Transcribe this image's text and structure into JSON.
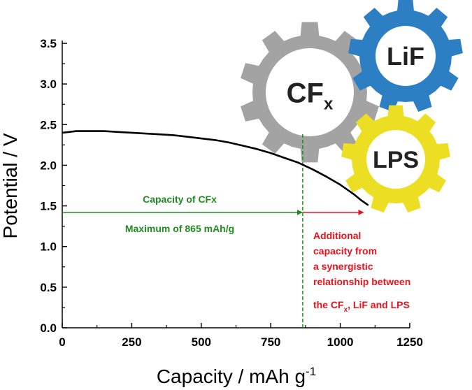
{
  "chart_data": {
    "type": "line",
    "xlabel": "Capacity / mAh g",
    "xlabel_sup": "-1",
    "ylabel": "Potential / V",
    "xlim": [
      0,
      1250
    ],
    "ylim": [
      0,
      3.5
    ],
    "xticks": [
      "0",
      "250",
      "500",
      "750",
      "1000",
      "1250"
    ],
    "yticks": [
      "0.0",
      "0.5",
      "1.0",
      "1.5",
      "2.0",
      "2.5",
      "3.0",
      "3.5"
    ],
    "series": [
      {
        "color": "#000000",
        "x": [
          0,
          25,
          50,
          100,
          150,
          200,
          250,
          300,
          350,
          400,
          450,
          500,
          550,
          600,
          650,
          700,
          750,
          800,
          850,
          875,
          900,
          950,
          1000,
          1050,
          1075,
          1100
        ],
        "y": [
          2.4,
          2.41,
          2.42,
          2.42,
          2.42,
          2.41,
          2.4,
          2.39,
          2.38,
          2.37,
          2.35,
          2.33,
          2.31,
          2.28,
          2.24,
          2.2,
          2.15,
          2.09,
          2.03,
          1.99,
          1.95,
          1.86,
          1.76,
          1.64,
          1.57,
          1.51
        ]
      }
    ],
    "marker_line": {
      "x": 865,
      "color": "#1e8c1e",
      "style": "dashed"
    },
    "arrows": [
      {
        "from_x": 0,
        "to_x": 865,
        "y": 1.42,
        "color": "#1e8c1e"
      },
      {
        "from_x": 865,
        "to_x": 1085,
        "y": 1.42,
        "color": "#e8131d"
      }
    ],
    "annotations": {
      "green_line1": "Capacity of CFx",
      "green_line2": "Maximum of 865 mAh/g",
      "red_lines": [
        "Additional",
        "capacity from",
        "a synergistic",
        "relationship between"
      ],
      "red_last_pre": "the CF",
      "red_last_sub": "x",
      "red_last_post": ", LiF and LPS"
    },
    "gears": [
      {
        "label": "CF",
        "sub": "x",
        "color": "#a3a3a3"
      },
      {
        "label": "LiF",
        "sub": "",
        "color": "#2d7fc4"
      },
      {
        "label": "LPS",
        "sub": "",
        "color": "#ecde22"
      }
    ],
    "grid": false
  }
}
